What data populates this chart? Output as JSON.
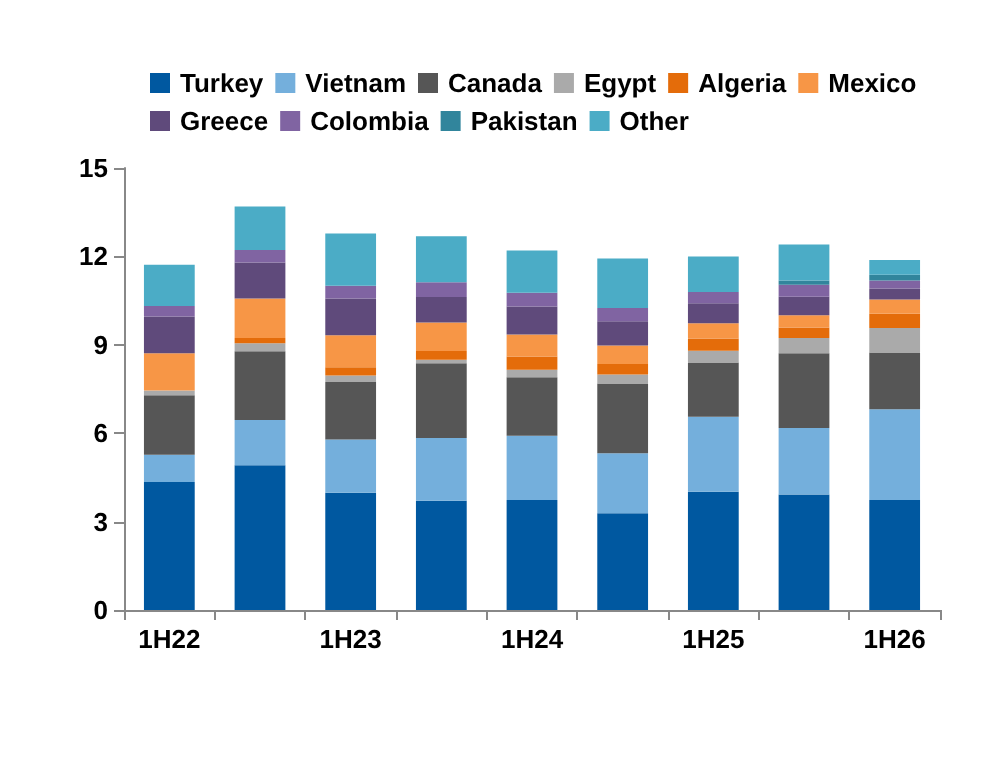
{
  "chart_data": {
    "type": "bar",
    "stacked": true,
    "categories": [
      "1H22",
      null,
      "1H23",
      null,
      "1H24",
      null,
      "1H25",
      null,
      "1H26"
    ],
    "ylim": [
      0,
      15
    ],
    "yticks": [
      0,
      3,
      6,
      9,
      12,
      15
    ],
    "grid": false,
    "legend": "top",
    "series": [
      {
        "name": "Turkey",
        "color": "#0058a0",
        "values": [
          4.34,
          4.91,
          3.98,
          3.71,
          3.73,
          3.28,
          4.01,
          3.92,
          3.73
        ]
      },
      {
        "name": "Vietnam",
        "color": "#74afdc",
        "values": [
          0.93,
          1.54,
          1.81,
          2.13,
          2.18,
          2.04,
          2.55,
          2.26,
          3.08
        ]
      },
      {
        "name": "Canada",
        "color": "#565656",
        "values": [
          2.02,
          2.33,
          1.95,
          2.53,
          1.99,
          2.37,
          1.84,
          2.53,
          1.93
        ]
      },
      {
        "name": "Egypt",
        "color": "#aaaaaa",
        "values": [
          0.16,
          0.27,
          0.22,
          0.12,
          0.25,
          0.3,
          0.4,
          0.52,
          0.83
        ]
      },
      {
        "name": "Algeria",
        "color": "#e46c0a",
        "values": [
          0,
          0.18,
          0.28,
          0.3,
          0.45,
          0.36,
          0.41,
          0.36,
          0.48
        ]
      },
      {
        "name": "Mexico",
        "color": "#f79646",
        "values": [
          1.26,
          1.34,
          1.08,
          0.97,
          0.75,
          0.63,
          0.52,
          0.41,
          0.49
        ]
      },
      {
        "name": "Greece",
        "color": "#5f4a7b",
        "values": [
          1.25,
          1.22,
          1.25,
          0.86,
          0.95,
          0.82,
          0.68,
          0.63,
          0.37
        ]
      },
      {
        "name": "Colombia",
        "color": "#8064a2",
        "values": [
          0.36,
          0.43,
          0.43,
          0.5,
          0.47,
          0.45,
          0.38,
          0.41,
          0.27
        ]
      },
      {
        "name": "Pakistan",
        "color": "#31859c",
        "values": [
          0,
          0,
          0,
          0,
          0,
          0,
          0,
          0.14,
          0.2
        ]
      },
      {
        "name": "Other",
        "color": "#4bacc6",
        "values": [
          1.4,
          1.47,
          1.78,
          1.56,
          1.43,
          1.68,
          1.21,
          1.22,
          0.5
        ]
      }
    ]
  }
}
